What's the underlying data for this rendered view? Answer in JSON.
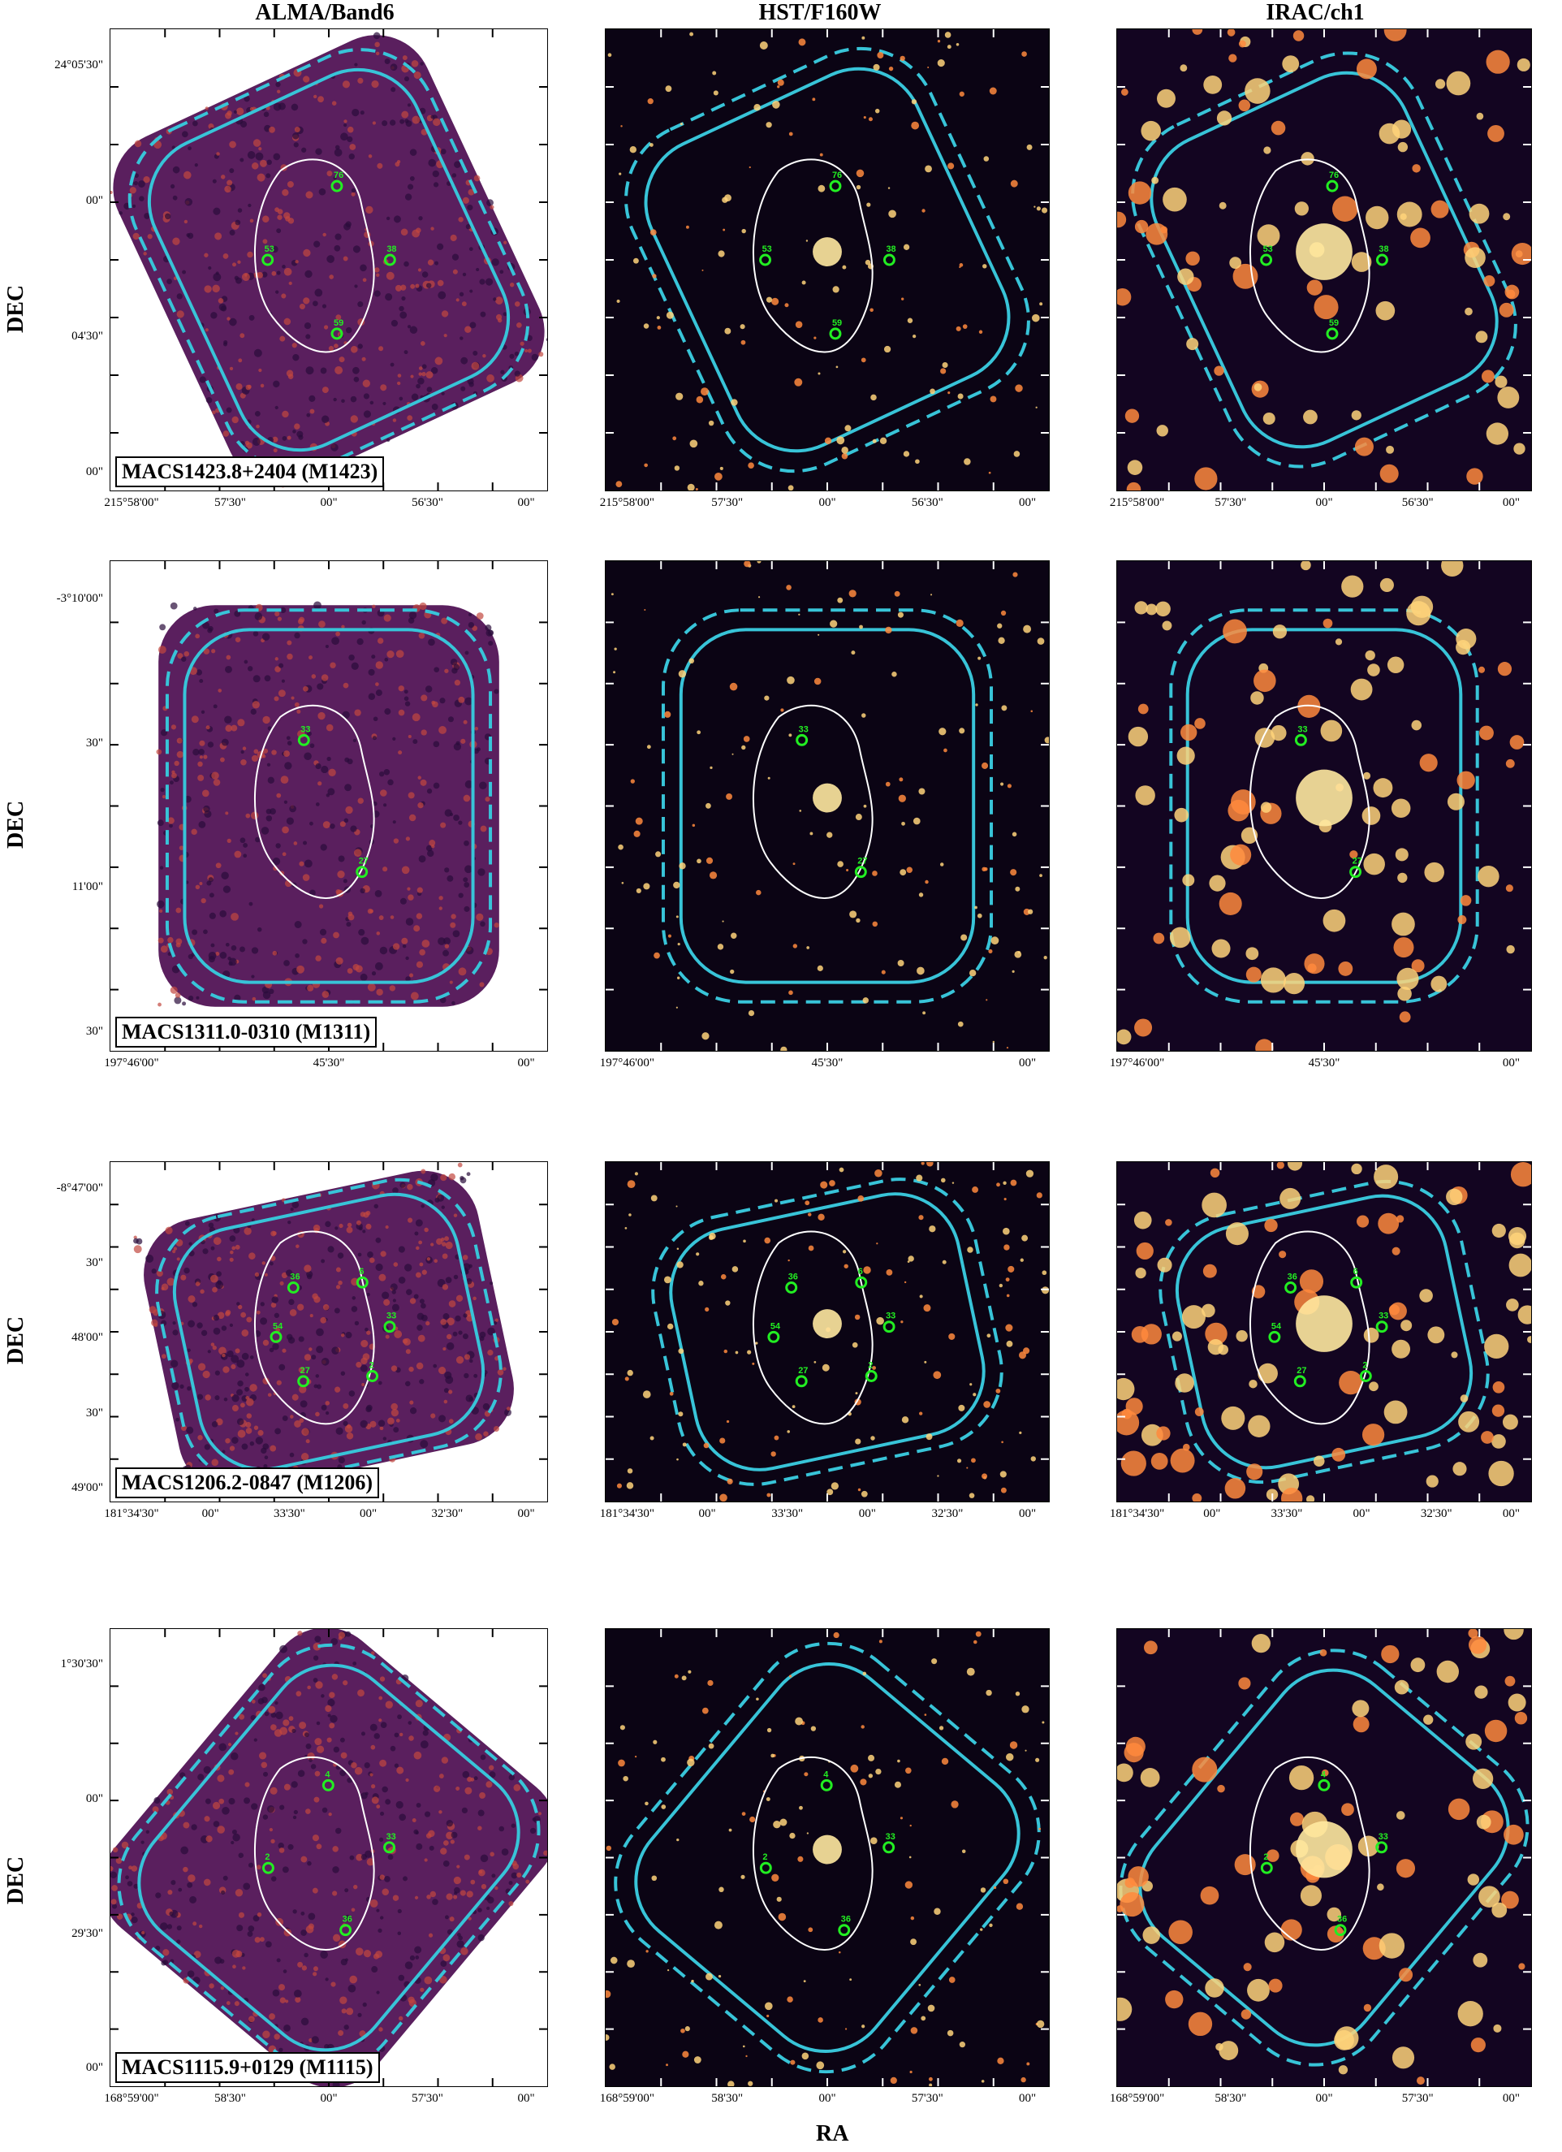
{
  "columns": [
    "ALMA/Band6",
    "HST/F160W",
    "IRAC/ch1"
  ],
  "axis": {
    "y_label": "DEC",
    "x_label": "RA"
  },
  "colors": {
    "contour_solid": "#38c4d8",
    "contour_dashed": "#38c4d8",
    "source_marker": "#22ee22",
    "critical_curve": "#ffffff",
    "alma_bg": "#5a1f5e",
    "hst_bg": "#0b0414",
    "irac_bg": "#130521"
  },
  "rows": [
    {
      "cluster": "MACS1423.8+2404 (M1423)",
      "ra_ticks": [
        "215°58'00\"",
        "57'30\"",
        "00\"",
        "56'30\"",
        "00\""
      ],
      "dec_ticks": [
        "24°05'30\"",
        "00\"",
        "04'30\"",
        "00\""
      ],
      "sources": [
        "38",
        "59",
        "53",
        "76"
      ]
    },
    {
      "cluster": "MACS1311.0-0310 (M1311)",
      "ra_ticks": [
        "197°46'00\"",
        "45'30\"",
        "00\""
      ],
      "dec_ticks": [
        "-3°10'00\"",
        "30\"",
        "11'00\"",
        "30\""
      ],
      "sources": [
        "27",
        "33"
      ]
    },
    {
      "cluster": "MACS1206.2-0847 (M1206)",
      "ra_ticks": [
        "181°34'30\"",
        "00\"",
        "33'30\"",
        "00\"",
        "32'30\"",
        "00\""
      ],
      "dec_ticks": [
        "-8°47'00\"",
        "30\"",
        "48'00\"",
        "30\"",
        "49'00\""
      ],
      "sources": [
        "27",
        "54",
        "36",
        "6",
        "33",
        "2"
      ]
    },
    {
      "cluster": "MACS1115.9+0129 (M1115)",
      "ra_ticks": [
        "168°59'00\"",
        "58'30\"",
        "00\"",
        "57'30\"",
        "00\""
      ],
      "dec_ticks": [
        "1°30'30\"",
        "00\"",
        "29'30\"",
        "00\""
      ],
      "sources": [
        "2",
        "4",
        "33",
        "36"
      ]
    }
  ]
}
